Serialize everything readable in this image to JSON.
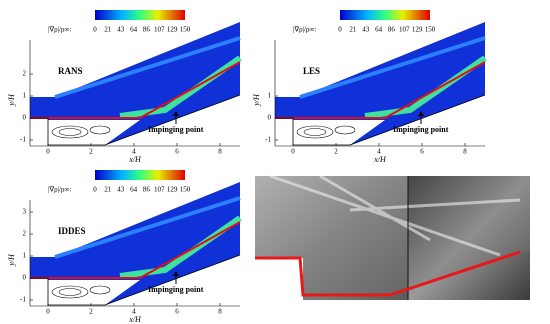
{
  "panels": [
    {
      "label": "RANS",
      "colorbar_label": "|∇ρ|/ρ∞:",
      "colorbar_ticks": [
        0,
        21,
        43,
        64,
        86,
        107,
        129,
        150
      ],
      "x_label": "x/H",
      "y_label": "y/H",
      "x_ticks": [
        0,
        2,
        4,
        6,
        8
      ],
      "y_ticks": [
        -1,
        0,
        1,
        2
      ],
      "annotation": "Impinging point"
    },
    {
      "label": "LES",
      "colorbar_label": "|∇ρ|/ρ∞:",
      "colorbar_ticks": [
        0,
        21,
        43,
        64,
        86,
        107,
        129,
        150
      ],
      "x_label": "x/H",
      "y_label": "y/H",
      "x_ticks": [
        0,
        2,
        4,
        6,
        8
      ],
      "y_ticks": [
        -1,
        0,
        1
      ],
      "annotation": "Impinging point"
    },
    {
      "label": "IDDES",
      "colorbar_label": "|∇ρ|/ρ∞:",
      "colorbar_ticks": [
        0,
        21,
        43,
        64,
        86,
        107,
        129,
        150
      ],
      "x_label": "x/H",
      "y_label": "y/H",
      "x_ticks": [
        0,
        2,
        4,
        6,
        8
      ],
      "y_ticks": [
        -1,
        0,
        1,
        2,
        3
      ],
      "annotation": "Impinging point"
    }
  ]
}
